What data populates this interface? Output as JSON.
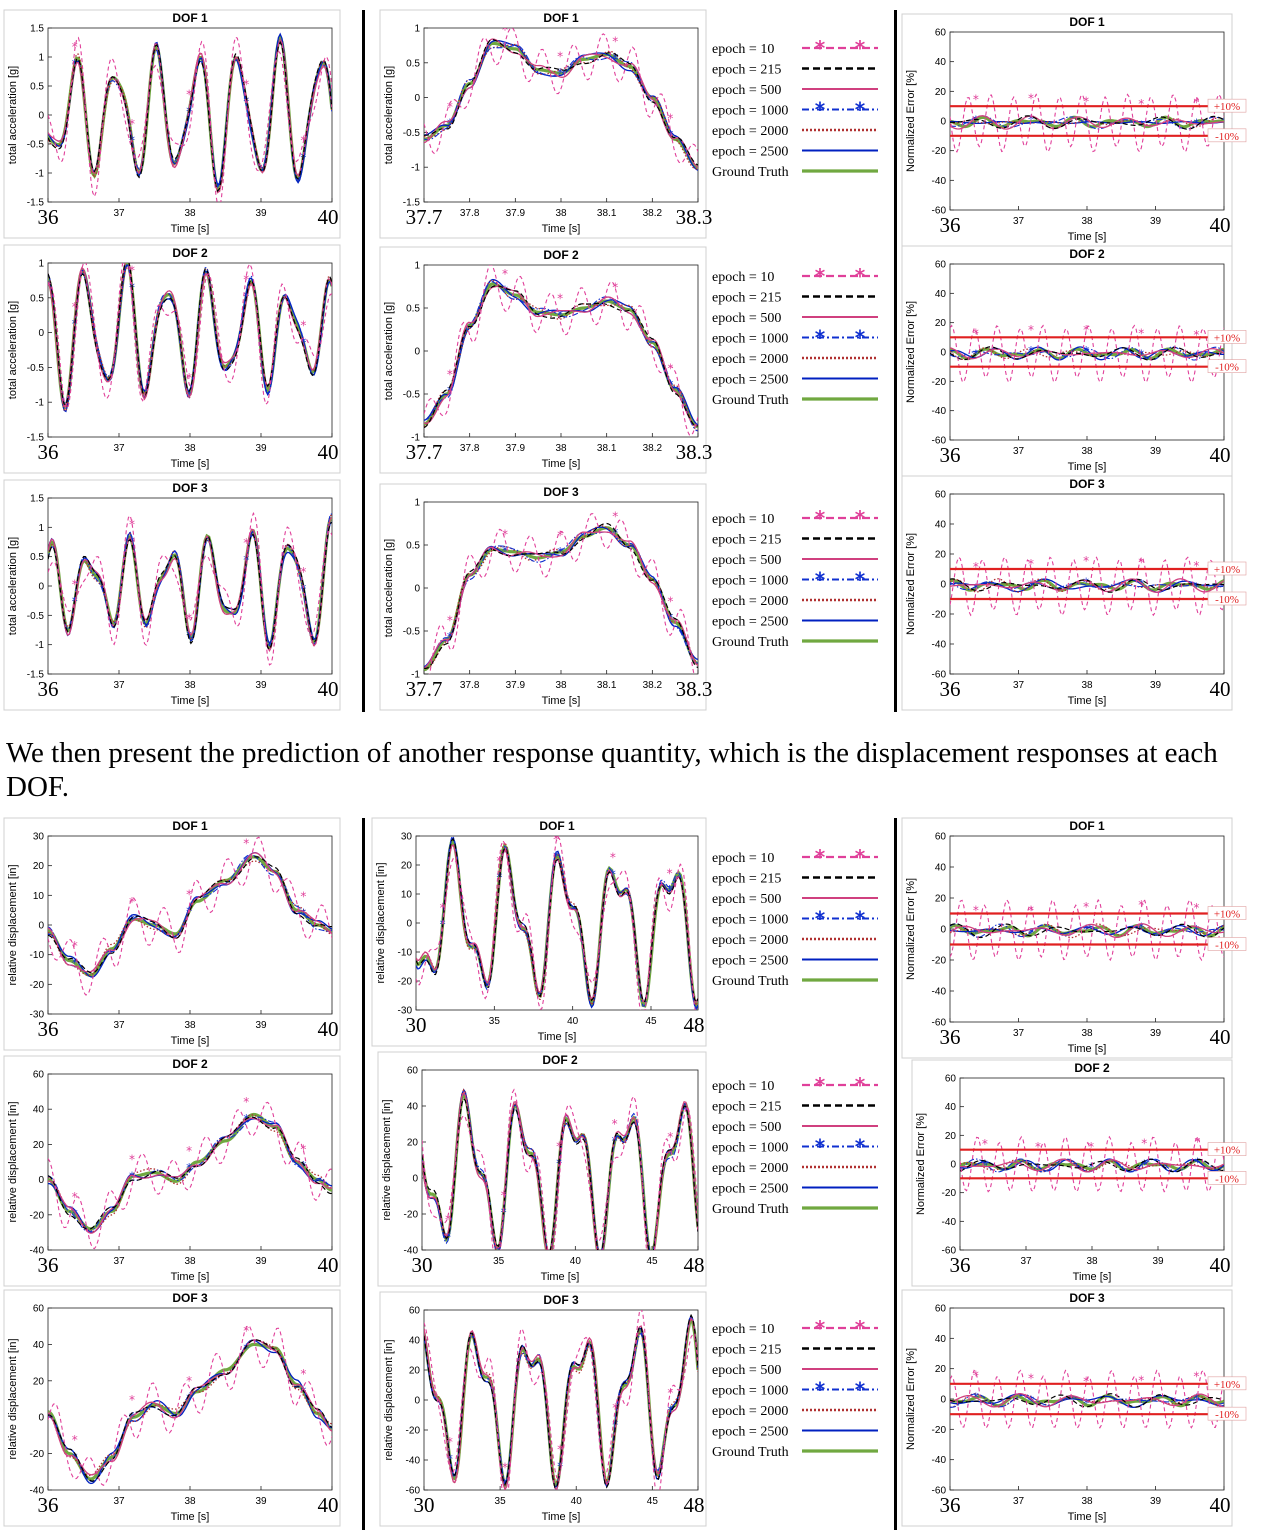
{
  "paragraph": "We then present the prediction of another response quantity, which is the displacement responses at each DOF.",
  "legend": {
    "entries": [
      {
        "label": "epoch = 10",
        "color": "#e0409a",
        "style": "dash-star"
      },
      {
        "label": "epoch = 215",
        "color": "#000000",
        "style": "dashed"
      },
      {
        "label": "epoch = 500",
        "color": "#d0407f",
        "style": "solid"
      },
      {
        "label": "epoch = 1000",
        "color": "#1030d0",
        "style": "dashdot-star"
      },
      {
        "label": "epoch = 2000",
        "color": "#b03030",
        "style": "dotted"
      },
      {
        "label": "epoch = 2500",
        "color": "#0020c0",
        "style": "solid"
      },
      {
        "label": "Ground Truth",
        "color": "#70a840",
        "style": "thick"
      }
    ]
  },
  "threshold_labels": {
    "upper": "+10%",
    "lower": "-10%"
  },
  "chart_data": [
    {
      "id": "acc-full-1",
      "type": "line",
      "title": "DOF 1",
      "xlabel": "Time [s]",
      "ylabel": "total acceleration [g]",
      "xlim": [
        36,
        40
      ],
      "ylim": [
        -1.5,
        1.5
      ],
      "xticks": [
        "36",
        "37",
        "38",
        "39",
        "40"
      ],
      "yticks": [
        "-1.5",
        "-1",
        "-0.5",
        "0",
        "0.5",
        "1",
        "1.5"
      ],
      "signal": "acc",
      "seed": 1
    },
    {
      "id": "acc-full-2",
      "type": "line",
      "title": "DOF 2",
      "xlabel": "Time [s]",
      "ylabel": "total acceleration [g]",
      "xlim": [
        36,
        40
      ],
      "ylim": [
        -1.5,
        1
      ],
      "xticks": [
        "36",
        "37",
        "38",
        "39",
        "40"
      ],
      "yticks": [
        "-1.5",
        "-1",
        "-0.5",
        "0",
        "0.5",
        "1"
      ],
      "signal": "acc",
      "seed": 2
    },
    {
      "id": "acc-full-3",
      "type": "line",
      "title": "DOF 3",
      "xlabel": "Time [s]",
      "ylabel": "total acceleration [g]",
      "xlim": [
        36,
        40
      ],
      "ylim": [
        -1.5,
        1.5
      ],
      "xticks": [
        "36",
        "37",
        "38",
        "39",
        "40"
      ],
      "yticks": [
        "-1.5",
        "-1",
        "-0.5",
        "0",
        "0.5",
        "1",
        "1.5"
      ],
      "signal": "acc",
      "seed": 3
    },
    {
      "id": "acc-zoom-1",
      "type": "line",
      "title": "DOF 1",
      "xlabel": "Time [s]",
      "ylabel": "total acceleration [g]",
      "xlim": [
        37.7,
        38.3
      ],
      "ylim": [
        -1.5,
        1
      ],
      "xticks": [
        "37.7",
        "37.8",
        "37.9",
        "38",
        "38.1",
        "38.2",
        "38.3"
      ],
      "yticks": [
        "-1.5",
        "-1",
        "-0.5",
        "0",
        "0.5",
        "1"
      ],
      "signal": "zoom",
      "seed": 4,
      "series": [
        {
          "name": "Ground Truth",
          "points": [
            [
              37.7,
              -0.6
            ],
            [
              37.75,
              -0.4
            ],
            [
              37.8,
              0.2
            ],
            [
              37.85,
              0.78
            ],
            [
              37.9,
              0.7
            ],
            [
              37.95,
              0.4
            ],
            [
              38.0,
              0.35
            ],
            [
              38.05,
              0.55
            ],
            [
              38.1,
              0.62
            ],
            [
              38.15,
              0.45
            ],
            [
              38.2,
              0.0
            ],
            [
              38.25,
              -0.6
            ],
            [
              38.3,
              -1.0
            ]
          ]
        }
      ]
    },
    {
      "id": "acc-zoom-2",
      "type": "line",
      "title": "DOF 2",
      "xlabel": "Time [s]",
      "ylabel": "total acceleration [g]",
      "xlim": [
        37.7,
        38.3
      ],
      "ylim": [
        -1,
        1
      ],
      "xticks": [
        "37.7",
        "37.8",
        "37.9",
        "38",
        "38.1",
        "38.2",
        "38.3"
      ],
      "yticks": [
        "-1",
        "-0.5",
        "0",
        "0.5",
        "1"
      ],
      "signal": "zoom",
      "seed": 5,
      "series": [
        {
          "name": "Ground Truth",
          "points": [
            [
              37.7,
              -0.85
            ],
            [
              37.75,
              -0.5
            ],
            [
              37.8,
              0.3
            ],
            [
              37.85,
              0.78
            ],
            [
              37.9,
              0.65
            ],
            [
              37.95,
              0.45
            ],
            [
              38.0,
              0.42
            ],
            [
              38.05,
              0.5
            ],
            [
              38.1,
              0.58
            ],
            [
              38.15,
              0.48
            ],
            [
              38.2,
              0.1
            ],
            [
              38.25,
              -0.45
            ],
            [
              38.3,
              -0.88
            ]
          ]
        }
      ]
    },
    {
      "id": "acc-zoom-3",
      "type": "line",
      "title": "DOF 3",
      "xlabel": "Time [s]",
      "ylabel": "total acceleration [g]",
      "xlim": [
        37.7,
        38.3
      ],
      "ylim": [
        -1,
        1
      ],
      "xticks": [
        "37.7",
        "37.8",
        "37.9",
        "38",
        "38.1",
        "38.2",
        "38.3"
      ],
      "yticks": [
        "-1",
        "-0.5",
        "0",
        "0.5",
        "1"
      ],
      "signal": "zoom",
      "seed": 6,
      "series": [
        {
          "name": "Ground Truth",
          "points": [
            [
              37.7,
              -0.95
            ],
            [
              37.75,
              -0.6
            ],
            [
              37.8,
              0.15
            ],
            [
              37.85,
              0.45
            ],
            [
              37.9,
              0.42
            ],
            [
              37.95,
              0.35
            ],
            [
              38.0,
              0.42
            ],
            [
              38.05,
              0.6
            ],
            [
              38.1,
              0.7
            ],
            [
              38.15,
              0.5
            ],
            [
              38.2,
              0.1
            ],
            [
              38.25,
              -0.4
            ],
            [
              38.3,
              -0.88
            ]
          ]
        }
      ]
    },
    {
      "id": "acc-err-1",
      "type": "line",
      "title": "DOF 1",
      "xlabel": "Time [s]",
      "ylabel": "Normalized Error [%]",
      "xlim": [
        36,
        40
      ],
      "ylim": [
        -60,
        60
      ],
      "xticks": [
        "36",
        "37",
        "38",
        "39",
        "40"
      ],
      "yticks": [
        "-60",
        "-40",
        "-20",
        "0",
        "20",
        "40",
        "60"
      ],
      "signal": "err",
      "seed": 7,
      "thresholds": [
        10,
        -10
      ]
    },
    {
      "id": "acc-err-2",
      "type": "line",
      "title": "DOF 2",
      "xlabel": "Time [s]",
      "ylabel": "Normalized Error [%]",
      "xlim": [
        36,
        40
      ],
      "ylim": [
        -60,
        60
      ],
      "xticks": [
        "36",
        "37",
        "38",
        "39",
        "40"
      ],
      "yticks": [
        "-60",
        "-40",
        "-20",
        "0",
        "20",
        "40",
        "60"
      ],
      "signal": "err",
      "seed": 8,
      "thresholds": [
        10,
        -10
      ]
    },
    {
      "id": "acc-err-3",
      "type": "line",
      "title": "DOF 3",
      "xlabel": "Time [s]",
      "ylabel": "Normalized Error [%]",
      "xlim": [
        36,
        40
      ],
      "ylim": [
        -60,
        60
      ],
      "xticks": [
        "36",
        "37",
        "38",
        "39",
        "40"
      ],
      "yticks": [
        "-60",
        "-40",
        "-20",
        "0",
        "20",
        "40",
        "60"
      ],
      "signal": "err",
      "seed": 9,
      "thresholds": [
        10,
        -10
      ]
    },
    {
      "id": "disp-zoom-1",
      "type": "line",
      "title": "DOF 1",
      "xlabel": "Time [s]",
      "ylabel": "relative displacement [in]",
      "xlim": [
        36,
        40
      ],
      "ylim": [
        -30,
        30
      ],
      "xticks": [
        "36",
        "37",
        "38",
        "39",
        "40"
      ],
      "yticks": [
        "-30",
        "-20",
        "-10",
        "0",
        "10",
        "20",
        "30"
      ],
      "signal": "slow",
      "seed": 10,
      "series": [
        {
          "name": "Ground Truth",
          "points": [
            [
              36,
              -2
            ],
            [
              36.3,
              -12
            ],
            [
              36.6,
              -17
            ],
            [
              36.9,
              -8
            ],
            [
              37.2,
              2
            ],
            [
              37.5,
              0
            ],
            [
              37.8,
              -3
            ],
            [
              38.1,
              8
            ],
            [
              38.5,
              15
            ],
            [
              38.9,
              23
            ],
            [
              39.2,
              18
            ],
            [
              39.5,
              5
            ],
            [
              39.8,
              0
            ],
            [
              40,
              -2
            ]
          ]
        }
      ]
    },
    {
      "id": "disp-zoom-2",
      "type": "line",
      "title": "DOF 2",
      "xlabel": "Time [s]",
      "ylabel": "relative displacement [in]",
      "xlim": [
        36,
        40
      ],
      "ylim": [
        -40,
        60
      ],
      "xticks": [
        "36",
        "37",
        "38",
        "39",
        "40"
      ],
      "yticks": [
        "-40",
        "-20",
        "0",
        "20",
        "40",
        "60"
      ],
      "signal": "slow",
      "seed": 11,
      "series": [
        {
          "name": "Ground Truth",
          "points": [
            [
              36,
              0
            ],
            [
              36.3,
              -18
            ],
            [
              36.6,
              -28
            ],
            [
              36.9,
              -18
            ],
            [
              37.2,
              2
            ],
            [
              37.5,
              4
            ],
            [
              37.8,
              -1
            ],
            [
              38.1,
              10
            ],
            [
              38.5,
              22
            ],
            [
              38.9,
              37
            ],
            [
              39.2,
              30
            ],
            [
              39.5,
              10
            ],
            [
              39.8,
              0
            ],
            [
              40,
              -6
            ]
          ]
        }
      ]
    },
    {
      "id": "disp-zoom-3",
      "type": "line",
      "title": "DOF 3",
      "xlabel": "Time [s]",
      "ylabel": "relative displacement [in]",
      "xlim": [
        36,
        40
      ],
      "ylim": [
        -40,
        60
      ],
      "xticks": [
        "36",
        "37",
        "38",
        "39",
        "40"
      ],
      "yticks": [
        "-40",
        "-20",
        "0",
        "20",
        "40",
        "60"
      ],
      "signal": "slow",
      "seed": 12,
      "series": [
        {
          "name": "Ground Truth",
          "points": [
            [
              36,
              3
            ],
            [
              36.3,
              -20
            ],
            [
              36.6,
              -34
            ],
            [
              36.9,
              -22
            ],
            [
              37.2,
              0
            ],
            [
              37.5,
              7
            ],
            [
              37.8,
              2
            ],
            [
              38.1,
              14
            ],
            [
              38.5,
              26
            ],
            [
              38.9,
              40
            ],
            [
              39.2,
              38
            ],
            [
              39.5,
              18
            ],
            [
              39.8,
              2
            ],
            [
              40,
              -6
            ]
          ]
        }
      ]
    },
    {
      "id": "disp-full-1",
      "type": "line",
      "title": "DOF 1",
      "xlabel": "Time [s]",
      "ylabel": "relative displacement [in]",
      "xlim": [
        30,
        48
      ],
      "ylim": [
        -30,
        30
      ],
      "xticks": [
        "30",
        "35",
        "40",
        "45",
        "48"
      ],
      "yticks": [
        "-30",
        "-20",
        "-10",
        "0",
        "10",
        "20",
        "30"
      ],
      "signal": "disp",
      "seed": 13
    },
    {
      "id": "disp-full-2",
      "type": "line",
      "title": "DOF 2",
      "xlabel": "Time [s]",
      "ylabel": "relative displacement [in]",
      "xlim": [
        30,
        48
      ],
      "ylim": [
        -40,
        60
      ],
      "xticks": [
        "30",
        "35",
        "40",
        "45",
        "48"
      ],
      "yticks": [
        "-40",
        "-20",
        "0",
        "20",
        "40",
        "60"
      ],
      "signal": "disp",
      "seed": 14
    },
    {
      "id": "disp-full-3",
      "type": "line",
      "title": "DOF 3",
      "xlabel": "Time [s]",
      "ylabel": "relative displacement [in]",
      "xlim": [
        30,
        48
      ],
      "ylim": [
        -60,
        60
      ],
      "xticks": [
        "30",
        "35",
        "40",
        "45",
        "48"
      ],
      "yticks": [
        "-60",
        "-40",
        "-20",
        "0",
        "20",
        "40",
        "60"
      ],
      "signal": "disp",
      "seed": 15
    },
    {
      "id": "disp-err-1",
      "type": "line",
      "title": "DOF 1",
      "xlabel": "Time [s]",
      "ylabel": "Normalized Error [%]",
      "xlim": [
        36,
        40
      ],
      "ylim": [
        -60,
        60
      ],
      "xticks": [
        "36",
        "37",
        "38",
        "39",
        "40"
      ],
      "yticks": [
        "-60",
        "-40",
        "-20",
        "0",
        "20",
        "40",
        "60"
      ],
      "signal": "err-slow",
      "seed": 16,
      "thresholds": [
        10,
        -10
      ]
    },
    {
      "id": "disp-err-2",
      "type": "line",
      "title": "DOF 2",
      "xlabel": "Time [s]",
      "ylabel": "Normalized Error [%]",
      "xlim": [
        36,
        40
      ],
      "ylim": [
        -60,
        60
      ],
      "xticks": [
        "36",
        "37",
        "38",
        "39",
        "40"
      ],
      "yticks": [
        "-60",
        "-40",
        "-20",
        "0",
        "20",
        "40",
        "60"
      ],
      "signal": "err-slow",
      "seed": 17,
      "thresholds": [
        10,
        -10
      ]
    },
    {
      "id": "disp-err-3",
      "type": "line",
      "title": "DOF 3",
      "xlabel": "Time [s]",
      "ylabel": "Normalized Error [%]",
      "xlim": [
        36,
        40
      ],
      "ylim": [
        -60,
        60
      ],
      "xticks": [
        "36",
        "37",
        "38",
        "39",
        "40"
      ],
      "yticks": [
        "-60",
        "-40",
        "-20",
        "0",
        "20",
        "40",
        "60"
      ],
      "signal": "err-slow",
      "seed": 18,
      "thresholds": [
        10,
        -10
      ]
    }
  ]
}
